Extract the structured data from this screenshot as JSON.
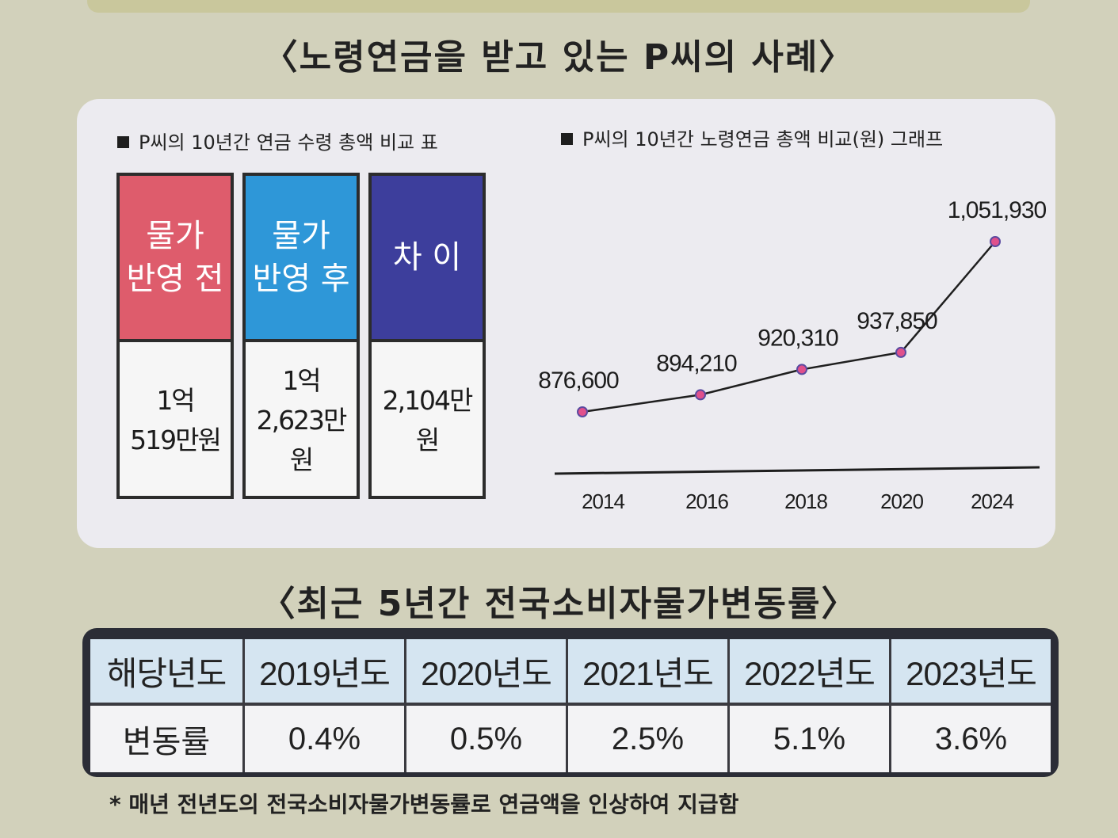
{
  "title_top": "〈노령연금을 받고 있는 P씨의 사례〉",
  "title_rate": "〈최근 5년간 전국소비자물가변동률〉",
  "table_section": {
    "label": "P씨의 10년간 연금 수령 총액 비교 표",
    "columns": [
      {
        "header": "물가\n반영 전",
        "value": "1억\n519만원",
        "color": "#de5c6c"
      },
      {
        "header": "물가\n반영 후",
        "value": "1억\n2,623만원",
        "color": "#2e97d8"
      },
      {
        "header": "차 이",
        "value": "2,104만원",
        "color": "#3d3e9c"
      }
    ]
  },
  "graph_section": {
    "label": "P씨의 10년간 노령연금 총액 비교(원) 그래프"
  },
  "chart_data": {
    "type": "line",
    "title": "P씨의 10년간 노령연금 총액 비교(원) 그래프",
    "categories": [
      "2014",
      "2016",
      "2018",
      "2020",
      "2024"
    ],
    "values": [
      876600,
      894210,
      920310,
      937850,
      1051930
    ],
    "value_labels": [
      "876,600",
      "894,210",
      "920,310",
      "937,850",
      "1,051,930"
    ],
    "line_color": "#1f1f1f",
    "marker_color": "#e0508c",
    "grid": false,
    "legend": "none"
  },
  "rate_table": {
    "header_label": "해당년도",
    "value_label": "변동률",
    "years": [
      "2019년도",
      "2020년도",
      "2021년도",
      "2022년도",
      "2023년도"
    ],
    "rates": [
      "0.4%",
      "0.5%",
      "2.5%",
      "5.1%",
      "3.6%"
    ]
  },
  "footnote": "* 매년 전년도의 전국소비자물가변동률로 연금액을 인상하여 지급함"
}
